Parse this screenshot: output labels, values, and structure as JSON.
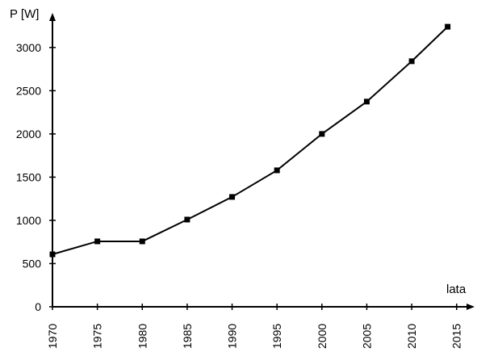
{
  "chart_data": {
    "type": "line",
    "ylabel": "P [W]",
    "xlabel": "lata",
    "x": [
      1970,
      1975,
      1980,
      1985,
      1990,
      1995,
      2000,
      2005,
      2010,
      2014
    ],
    "series": [
      {
        "color": "#000000",
        "values": [
          607,
          757,
          757,
          1009,
          1271,
          1579,
          2000,
          2374,
          2841,
          3240
        ]
      }
    ],
    "xlim": [
      1970,
      2017
    ],
    "ylim": [
      0,
      3400
    ],
    "xticks": [
      1970,
      1975,
      1980,
      1985,
      1990,
      1995,
      2000,
      2005,
      2010,
      2015
    ],
    "yticks": [
      0,
      500,
      1000,
      1500,
      2000,
      2500,
      3000
    ],
    "grid": false
  }
}
